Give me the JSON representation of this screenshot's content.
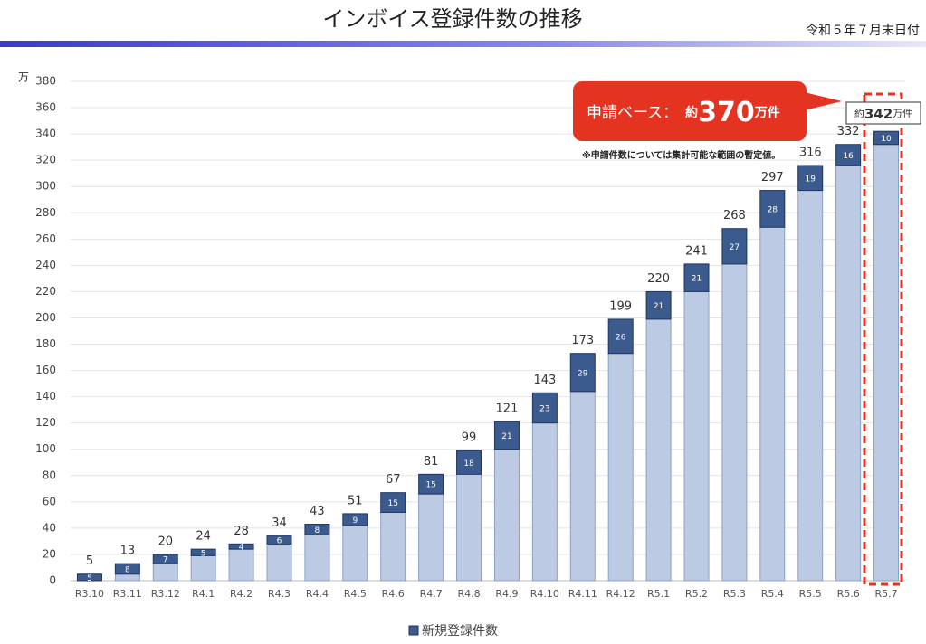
{
  "chart_data": {
    "type": "stacked_bar",
    "title": "インボイス登録件数の推移",
    "date_note": "令和５年７月末日付",
    "y_unit": "万",
    "categories": [
      "R3.10",
      "R3.11",
      "R3.12",
      "R4.1",
      "R4.2",
      "R4.3",
      "R4.4",
      "R4.5",
      "R4.6",
      "R4.7",
      "R4.8",
      "R4.9",
      "R4.10",
      "R4.11",
      "R4.12",
      "R5.1",
      "R5.2",
      "R5.3",
      "R5.4",
      "R5.5",
      "R5.6",
      "R5.7"
    ],
    "series": [
      {
        "color": "#bccbe3",
        "values": [
          0,
          5,
          13,
          19,
          24,
          28,
          35,
          42,
          52,
          66,
          81,
          100,
          120,
          144,
          173,
          199,
          220,
          241,
          269,
          297,
          316,
          332
        ]
      },
      {
        "name": "新規登録件数",
        "color": "#3b5a8e",
        "values": [
          5,
          8,
          7,
          5,
          4,
          6,
          8,
          9,
          15,
          15,
          18,
          21,
          23,
          29,
          26,
          21,
          21,
          27,
          28,
          19,
          16,
          10
        ]
      }
    ],
    "totals": [
      5,
      13,
      20,
      24,
      28,
      34,
      43,
      51,
      67,
      81,
      99,
      121,
      143,
      173,
      199,
      220,
      241,
      268,
      297,
      316,
      332,
      null
    ],
    "latest_total": {
      "prefix": "約",
      "value": 342,
      "suffix": "万件"
    },
    "application_callout": {
      "label": "申請ベース：",
      "prefix": "約",
      "value": 370,
      "suffix": "万件"
    },
    "application_note": "※申請件数については集計可能な範囲の暫定値。",
    "ylim": [
      0,
      380
    ],
    "yticks": [
      0,
      20,
      40,
      60,
      80,
      100,
      120,
      140,
      160,
      180,
      200,
      220,
      240,
      260,
      280,
      300,
      320,
      340,
      360,
      380
    ],
    "grid": true
  }
}
